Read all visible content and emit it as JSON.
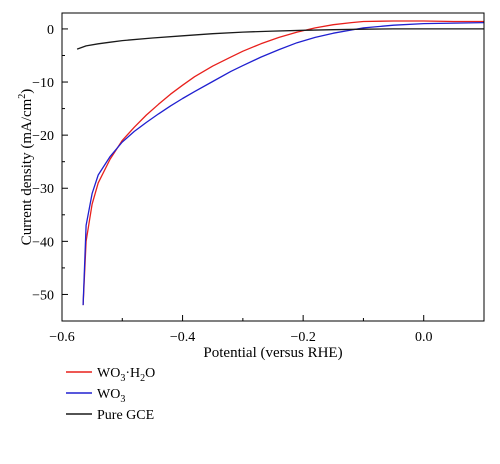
{
  "chart_data": {
    "type": "line",
    "xlabel": "Potential (versus RHE)",
    "ylabel_main": "Current density (mA/cm",
    "ylabel_sup": "2",
    "ylabel_close": ")",
    "xlim": [
      -0.6,
      0.1
    ],
    "ylim": [
      -55,
      3
    ],
    "x_ticks": [
      -0.6,
      -0.4,
      -0.2,
      0.0
    ],
    "x_tick_labels": [
      "−0.6",
      "−0.4",
      "−0.2",
      "0.0"
    ],
    "y_ticks": [
      0,
      -10,
      -20,
      -30,
      -40,
      -50
    ],
    "y_tick_labels": [
      "0",
      "−10",
      "−20",
      "−30",
      "−40",
      "−50"
    ],
    "grid": false,
    "legend_position": "bottom-left, below the plot",
    "series": [
      {
        "name_parts": [
          "WO",
          "3",
          "·H",
          "2",
          "O"
        ],
        "color": "#e8201c",
        "x": [
          -0.565,
          -0.56,
          -0.55,
          -0.54,
          -0.52,
          -0.5,
          -0.48,
          -0.46,
          -0.44,
          -0.42,
          -0.4,
          -0.38,
          -0.35,
          -0.32,
          -0.3,
          -0.27,
          -0.24,
          -0.21,
          -0.18,
          -0.15,
          -0.12,
          -0.1,
          -0.05,
          0.0,
          0.05,
          0.1
        ],
        "y": [
          -52,
          -40,
          -33,
          -29,
          -24.5,
          -21,
          -18.5,
          -16.2,
          -14.2,
          -12.3,
          -10.6,
          -9.0,
          -7.0,
          -5.3,
          -4.2,
          -2.8,
          -1.6,
          -0.6,
          0.2,
          0.8,
          1.2,
          1.4,
          1.5,
          1.5,
          1.4,
          1.4
        ]
      },
      {
        "name_parts": [
          "WO",
          "3"
        ],
        "color": "#2020d0",
        "x": [
          -0.565,
          -0.56,
          -0.55,
          -0.54,
          -0.52,
          -0.5,
          -0.48,
          -0.46,
          -0.44,
          -0.42,
          -0.4,
          -0.38,
          -0.35,
          -0.32,
          -0.3,
          -0.27,
          -0.24,
          -0.21,
          -0.18,
          -0.15,
          -0.12,
          -0.1,
          -0.05,
          0.0,
          0.05,
          0.1
        ],
        "y": [
          -52,
          -37,
          -31,
          -27.5,
          -24,
          -21.3,
          -19.3,
          -17.6,
          -16.0,
          -14.5,
          -13.1,
          -11.8,
          -9.9,
          -8.0,
          -6.9,
          -5.3,
          -3.9,
          -2.6,
          -1.6,
          -0.8,
          -0.2,
          0.2,
          0.7,
          1.0,
          1.1,
          1.2
        ]
      },
      {
        "name_parts": [
          "Pure GCE"
        ],
        "color": "#1a1a1a",
        "x": [
          -0.575,
          -0.56,
          -0.54,
          -0.52,
          -0.5,
          -0.45,
          -0.4,
          -0.35,
          -0.3,
          -0.25,
          -0.2,
          -0.15,
          -0.1,
          -0.05,
          0.0,
          0.05,
          0.1
        ],
        "y": [
          -3.8,
          -3.2,
          -2.8,
          -2.5,
          -2.2,
          -1.7,
          -1.3,
          -0.9,
          -0.6,
          -0.4,
          -0.25,
          -0.15,
          -0.05,
          0.0,
          0.0,
          0.0,
          0.0
        ]
      }
    ]
  }
}
